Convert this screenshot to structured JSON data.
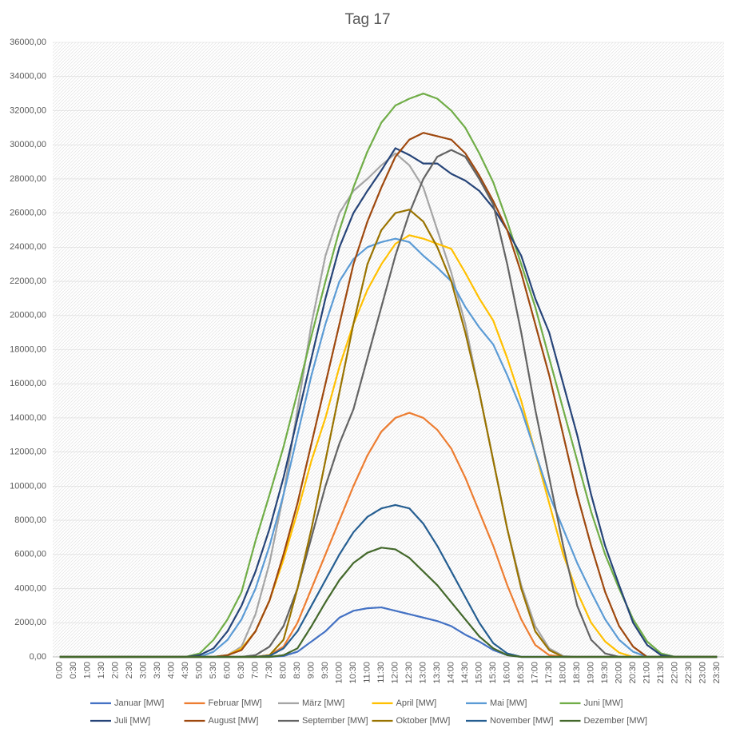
{
  "chart_data": {
    "type": "line",
    "title": "Tag 17",
    "categories": [
      "0:00",
      "0:30",
      "1:00",
      "1:30",
      "2:00",
      "2:30",
      "3:00",
      "3:30",
      "4:00",
      "4:30",
      "5:00",
      "5:30",
      "6:00",
      "6:30",
      "7:00",
      "7:30",
      "8:00",
      "8:30",
      "9:00",
      "9:30",
      "10:00",
      "10:30",
      "11:00",
      "11:30",
      "12:00",
      "12:30",
      "13:00",
      "13:30",
      "14:00",
      "14:30",
      "15:00",
      "15:30",
      "16:00",
      "16:30",
      "17:00",
      "17:30",
      "18:00",
      "18:30",
      "19:00",
      "19:30",
      "20:00",
      "20:30",
      "21:00",
      "21:30",
      "22:00",
      "22:30",
      "23:00",
      "23:30"
    ],
    "ylim": [
      0,
      36000
    ],
    "yticks": [
      {
        "value": 0,
        "label": "0,00"
      },
      {
        "value": 2000,
        "label": "2000,00"
      },
      {
        "value": 4000,
        "label": "4000,00"
      },
      {
        "value": 6000,
        "label": "6000,00"
      },
      {
        "value": 8000,
        "label": "8000,00"
      },
      {
        "value": 10000,
        "label": "10000,00"
      },
      {
        "value": 12000,
        "label": "12000,00"
      },
      {
        "value": 14000,
        "label": "14000,00"
      },
      {
        "value": 16000,
        "label": "16000,00"
      },
      {
        "value": 18000,
        "label": "18000,00"
      },
      {
        "value": 20000,
        "label": "20000,00"
      },
      {
        "value": 22000,
        "label": "22000,00"
      },
      {
        "value": 24000,
        "label": "24000,00"
      },
      {
        "value": 26000,
        "label": "26000,00"
      },
      {
        "value": 28000,
        "label": "28000,00"
      },
      {
        "value": 30000,
        "label": "30000,00"
      },
      {
        "value": 32000,
        "label": "32000,00"
      },
      {
        "value": 34000,
        "label": "34000,00"
      },
      {
        "value": 36000,
        "label": "36000,00"
      }
    ],
    "grid": true,
    "legend": "bottom",
    "series": [
      {
        "name": "Januar [MW]",
        "color": "#4472c4",
        "values": [
          0,
          0,
          0,
          0,
          0,
          0,
          0,
          0,
          0,
          0,
          0,
          0,
          0,
          0,
          0,
          0,
          50,
          300,
          900,
          1500,
          2300,
          2700,
          2850,
          2900,
          2700,
          2500,
          2300,
          2100,
          1800,
          1300,
          900,
          400,
          100,
          0,
          0,
          0,
          0,
          0,
          0,
          0,
          0,
          0,
          0,
          0,
          0,
          0,
          0,
          0
        ]
      },
      {
        "name": "Februar [MW]",
        "color": "#ed7d31",
        "values": [
          0,
          0,
          0,
          0,
          0,
          0,
          0,
          0,
          0,
          0,
          0,
          0,
          0,
          0,
          0,
          100,
          600,
          2000,
          4000,
          6000,
          8000,
          10000,
          11800,
          13200,
          14000,
          14300,
          14000,
          13300,
          12200,
          10500,
          8500,
          6500,
          4200,
          2200,
          700,
          100,
          0,
          0,
          0,
          0,
          0,
          0,
          0,
          0,
          0,
          0,
          0,
          0
        ]
      },
      {
        "name": "März [MW]",
        "color": "#a5a5a5",
        "values": [
          0,
          0,
          0,
          0,
          0,
          0,
          0,
          0,
          0,
          0,
          0,
          0,
          100,
          600,
          2500,
          5500,
          9500,
          14500,
          19500,
          23500,
          26000,
          27300,
          28000,
          28800,
          29500,
          28800,
          27500,
          25000,
          22500,
          19500,
          15500,
          11500,
          7500,
          4200,
          1800,
          500,
          50,
          0,
          0,
          0,
          0,
          0,
          0,
          0,
          0,
          0,
          0,
          0
        ]
      },
      {
        "name": "April [MW]",
        "color": "#ffc000",
        "values": [
          0,
          0,
          0,
          0,
          0,
          0,
          0,
          0,
          0,
          0,
          0,
          0,
          100,
          500,
          1500,
          3300,
          5700,
          8500,
          11500,
          14000,
          17000,
          19500,
          21500,
          23000,
          24200,
          24700,
          24500,
          24200,
          23900,
          22500,
          21000,
          19700,
          17500,
          15000,
          12000,
          9000,
          6000,
          3800,
          2000,
          900,
          250,
          0,
          0,
          0,
          0,
          0,
          0,
          0
        ]
      },
      {
        "name": "Mai [MW]",
        "color": "#5b9bd5",
        "values": [
          0,
          0,
          0,
          0,
          0,
          0,
          0,
          0,
          0,
          0,
          0,
          300,
          1000,
          2200,
          4000,
          6500,
          9500,
          13000,
          16500,
          19500,
          22000,
          23300,
          24000,
          24300,
          24500,
          24300,
          23500,
          22800,
          22000,
          20500,
          19300,
          18300,
          16500,
          14500,
          12000,
          9500,
          7500,
          5500,
          3800,
          2200,
          1000,
          300,
          0,
          0,
          0,
          0,
          0,
          0
        ]
      },
      {
        "name": "Juni [MW]",
        "color": "#70ad47",
        "values": [
          0,
          0,
          0,
          0,
          0,
          0,
          0,
          0,
          0,
          0,
          200,
          1000,
          2200,
          3800,
          6800,
          9500,
          12300,
          15500,
          18800,
          22000,
          25000,
          27500,
          29600,
          31300,
          32300,
          32700,
          33000,
          32700,
          32000,
          31000,
          29500,
          27800,
          25500,
          23000,
          20500,
          17500,
          14500,
          11500,
          8500,
          6000,
          4000,
          2200,
          900,
          200,
          0,
          0,
          0,
          0
        ]
      },
      {
        "name": "Juli [MW]",
        "color": "#264478",
        "values": [
          0,
          0,
          0,
          0,
          0,
          0,
          0,
          0,
          0,
          0,
          100,
          500,
          1500,
          3000,
          5000,
          7500,
          10500,
          14000,
          17500,
          21000,
          24000,
          26000,
          27300,
          28500,
          29800,
          29400,
          28900,
          28900,
          28300,
          27900,
          27300,
          26300,
          25000,
          23500,
          21000,
          19000,
          16000,
          13000,
          9500,
          6500,
          4200,
          2000,
          700,
          100,
          0,
          0,
          0,
          0
        ]
      },
      {
        "name": "August [MW]",
        "color": "#9e480e",
        "values": [
          0,
          0,
          0,
          0,
          0,
          0,
          0,
          0,
          0,
          0,
          0,
          0,
          100,
          400,
          1500,
          3300,
          6000,
          9000,
          12500,
          16000,
          19500,
          23000,
          25500,
          27500,
          29300,
          30300,
          30700,
          30500,
          30300,
          29500,
          28200,
          26700,
          25000,
          22500,
          19500,
          16500,
          13000,
          9500,
          6500,
          3800,
          1800,
          600,
          0,
          0,
          0,
          0,
          0,
          0
        ]
      },
      {
        "name": "September [MW]",
        "color": "#636363",
        "values": [
          0,
          0,
          0,
          0,
          0,
          0,
          0,
          0,
          0,
          0,
          0,
          0,
          0,
          0,
          100,
          600,
          1800,
          4000,
          7000,
          10000,
          12500,
          14500,
          17500,
          20500,
          23500,
          26000,
          28000,
          29300,
          29700,
          29300,
          28000,
          26500,
          23000,
          19000,
          14500,
          10500,
          6500,
          3000,
          1000,
          200,
          0,
          0,
          0,
          0,
          0,
          0,
          0,
          0
        ]
      },
      {
        "name": "Oktober [MW]",
        "color": "#997300",
        "values": [
          0,
          0,
          0,
          0,
          0,
          0,
          0,
          0,
          0,
          0,
          0,
          0,
          0,
          0,
          0,
          100,
          1000,
          4000,
          7500,
          11500,
          15500,
          19500,
          23000,
          25000,
          26000,
          26200,
          25500,
          24000,
          22000,
          19000,
          15500,
          11500,
          7500,
          4000,
          1500,
          400,
          0,
          0,
          0,
          0,
          0,
          0,
          0,
          0,
          0,
          0,
          0,
          0
        ]
      },
      {
        "name": "November [MW]",
        "color": "#255e91",
        "values": [
          0,
          0,
          0,
          0,
          0,
          0,
          0,
          0,
          0,
          0,
          0,
          0,
          0,
          0,
          0,
          50,
          500,
          1500,
          3000,
          4500,
          6000,
          7300,
          8200,
          8700,
          8900,
          8700,
          7800,
          6500,
          5000,
          3500,
          2000,
          800,
          200,
          0,
          0,
          0,
          0,
          0,
          0,
          0,
          0,
          0,
          0,
          0,
          0,
          0,
          0,
          0
        ]
      },
      {
        "name": "Dezember [MW]",
        "color": "#43682b",
        "values": [
          0,
          0,
          0,
          0,
          0,
          0,
          0,
          0,
          0,
          0,
          0,
          0,
          0,
          0,
          0,
          0,
          100,
          500,
          1800,
          3200,
          4500,
          5500,
          6100,
          6400,
          6300,
          5800,
          5000,
          4200,
          3200,
          2200,
          1200,
          500,
          100,
          0,
          0,
          0,
          0,
          0,
          0,
          0,
          0,
          0,
          0,
          0,
          0,
          0,
          0,
          0
        ]
      }
    ]
  }
}
